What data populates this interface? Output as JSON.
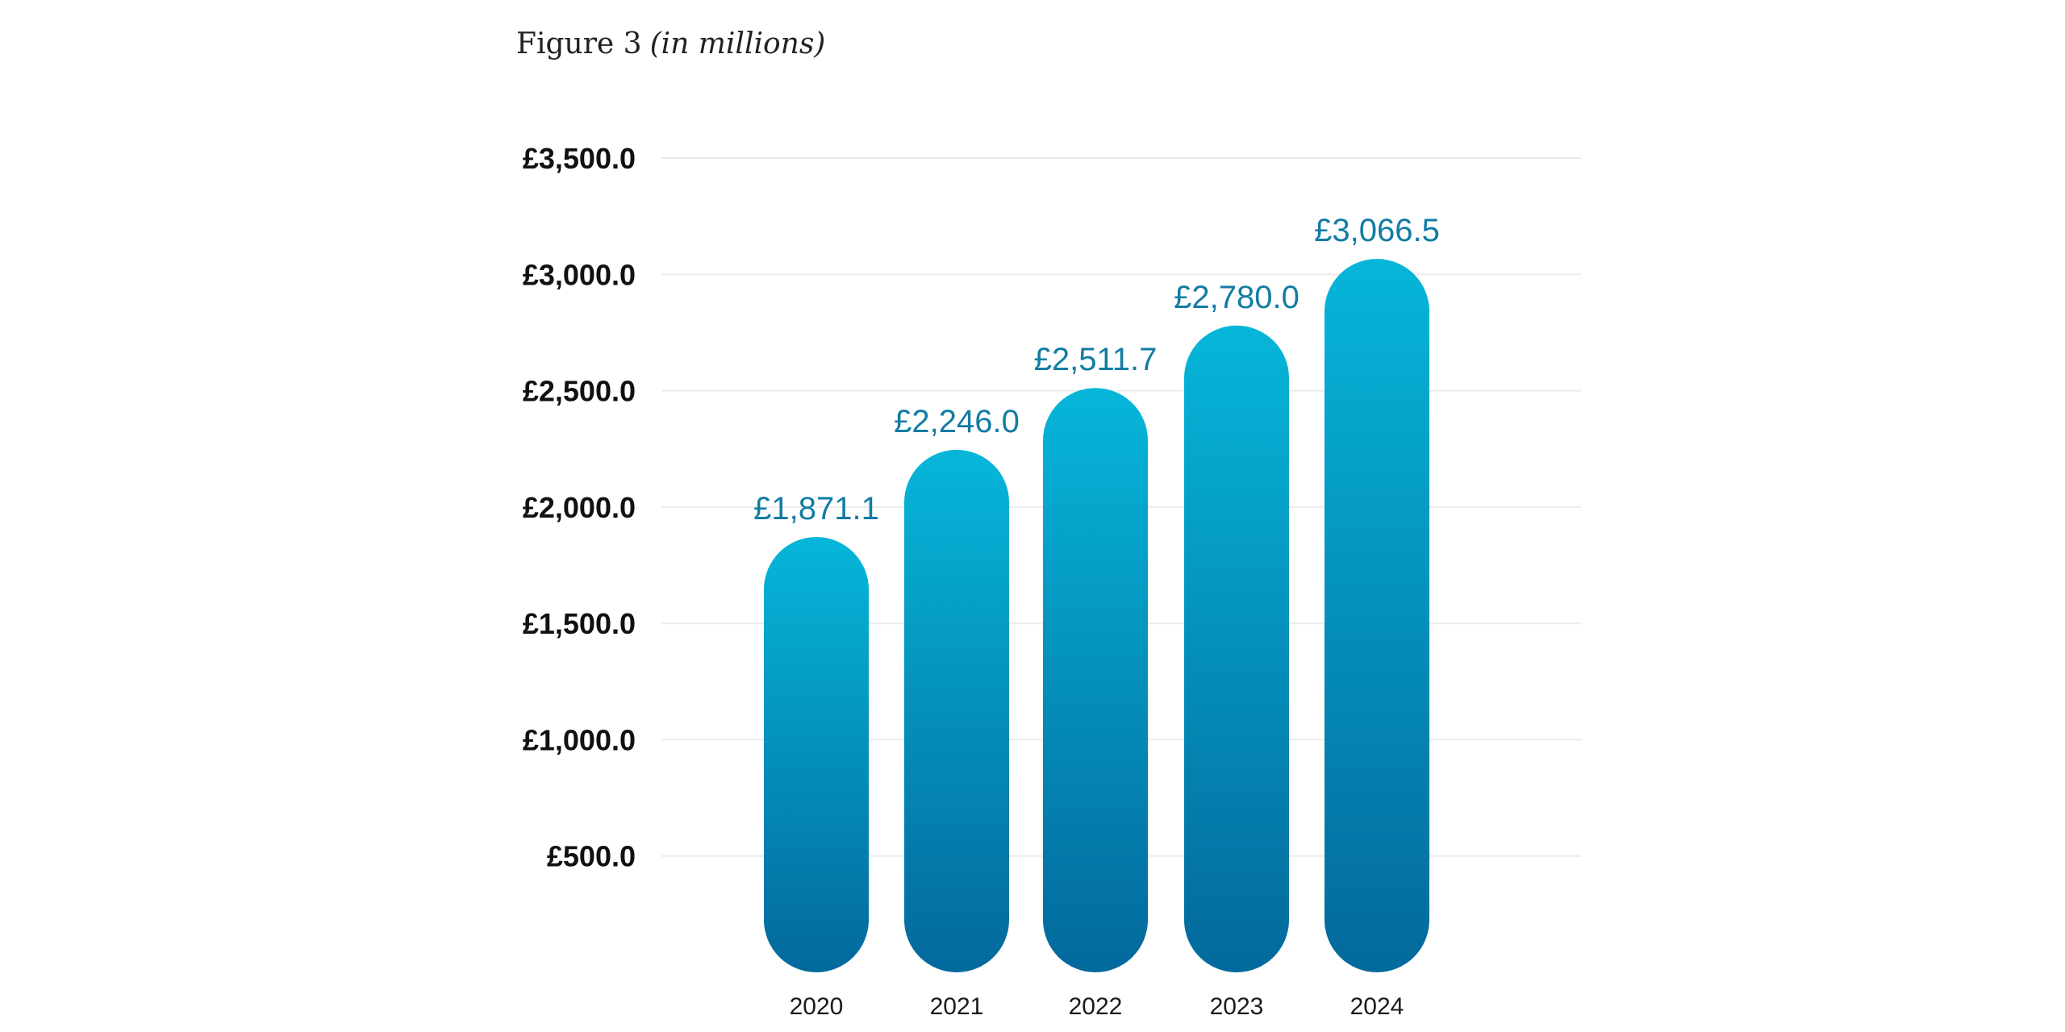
{
  "figure": {
    "title": "Figure 3",
    "subtitle": "(in millions)"
  },
  "chart_data": {
    "type": "bar",
    "title": "Figure 3 (in millions)",
    "xlabel": "",
    "ylabel": "",
    "categories": [
      "2020",
      "2021",
      "2022",
      "2023",
      "2024"
    ],
    "values": [
      1871.1,
      2246.0,
      2511.7,
      2780.0,
      3066.5
    ],
    "data_labels": [
      "£1,871.1",
      "£2,246.0",
      "£2,511.7",
      "£2,780.0",
      "£3,066.5"
    ],
    "yticks": [
      500,
      1000,
      1500,
      2000,
      2500,
      3000,
      3500
    ],
    "ytick_labels": [
      "£500.0",
      "£1,000.0",
      "£1,500.0",
      "£2,000.0",
      "£2,500.0",
      "£3,000.0",
      "£3,500.0"
    ],
    "ylim": [
      0,
      3500
    ],
    "grid": true,
    "legend": "none",
    "bar_style": "rounded pill with vertical gradient",
    "colors": {
      "bar_top": "#06b6d9",
      "bar_bottom": "#03699c",
      "data_label": "#127ca3",
      "tick_text": "#111111",
      "grid": "#ebebeb"
    }
  }
}
